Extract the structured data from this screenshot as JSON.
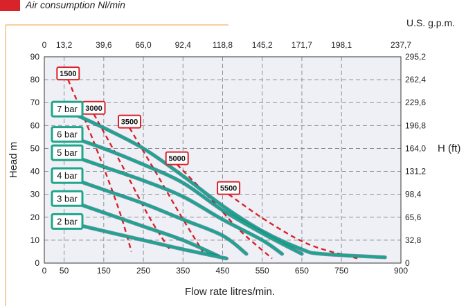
{
  "header": {
    "caption": "Air consumption Nl/min",
    "accent_color": "#d8232a",
    "rule_color": "#e8a33d"
  },
  "chart_data": {
    "type": "line",
    "xlabel": "Flow rate litres/min.",
    "ylabel": "Head m",
    "top_axis_label": "U.S. g.p.m.",
    "right_axis_label": "H (ft)",
    "xlim": [
      0,
      900
    ],
    "ylim": [
      0,
      90
    ],
    "x_ticks": [
      "0",
      "50",
      "150",
      "250",
      "350",
      "450",
      "550",
      "650",
      "750",
      "900"
    ],
    "x_tick_values": [
      0,
      50,
      150,
      250,
      350,
      450,
      550,
      650,
      750,
      900
    ],
    "y_ticks": [
      "0",
      "10",
      "20",
      "30",
      "40",
      "50",
      "60",
      "70",
      "80",
      "90"
    ],
    "y_tick_values": [
      0,
      10,
      20,
      30,
      40,
      50,
      60,
      70,
      80,
      90
    ],
    "top_ticks": [
      "0",
      "13,2",
      "39,6",
      "66,0",
      "92,4",
      "118,8",
      "145,2",
      "171,7",
      "198,1",
      "237,7"
    ],
    "right_ticks": [
      "0",
      "32,8",
      "65,6",
      "98,4",
      "131,2",
      "164,0",
      "196,8",
      "229,6",
      "262,4",
      "295,2"
    ],
    "grid": true,
    "pressure_curve_color": "#1fa58a",
    "air_curve_color": "#d8232a",
    "series": [
      {
        "name": "7 bar",
        "x": [
          50,
          150,
          250,
          350,
          450,
          550,
          650,
          700,
          860
        ],
        "y": [
          67,
          59,
          50,
          38,
          25,
          14,
          6,
          4,
          2.5
        ]
      },
      {
        "name": "6 bar",
        "x": [
          50,
          150,
          250,
          350,
          450,
          550,
          650
        ],
        "y": [
          56,
          50,
          43,
          35,
          23,
          13,
          4
        ]
      },
      {
        "name": "5 bar",
        "x": [
          50,
          150,
          250,
          350,
          450,
          550,
          600
        ],
        "y": [
          48,
          42,
          36,
          29,
          19,
          10,
          4
        ]
      },
      {
        "name": "4 bar",
        "x": [
          50,
          150,
          250,
          350,
          450,
          510
        ],
        "y": [
          38,
          32,
          26,
          19,
          12,
          4
        ]
      },
      {
        "name": "3 bar",
        "x": [
          50,
          150,
          250,
          350,
          440
        ],
        "y": [
          28,
          22,
          16,
          10,
          3
        ]
      },
      {
        "name": "2 bar",
        "x": [
          50,
          150,
          250,
          350,
          460
        ],
        "y": [
          18,
          14,
          10,
          6,
          2
        ]
      }
    ],
    "air_consumption": [
      {
        "name": "1500",
        "x": [
          60,
          120,
          185,
          220
        ],
        "y": [
          80,
          55,
          25,
          5
        ]
      },
      {
        "name": "3000",
        "x": [
          125,
          195,
          265,
          320
        ],
        "y": [
          65,
          43,
          20,
          5
        ]
      },
      {
        "name": "3500",
        "x": [
          215,
          280,
          340,
          400
        ],
        "y": [
          59,
          40,
          22,
          5
        ]
      },
      {
        "name": "5000",
        "x": [
          335,
          420,
          495,
          575
        ],
        "y": [
          43,
          28,
          14,
          2
        ]
      },
      {
        "name": "5500",
        "x": [
          465,
          565,
          670,
          790
        ],
        "y": [
          30,
          18,
          8,
          2
        ]
      }
    ]
  }
}
